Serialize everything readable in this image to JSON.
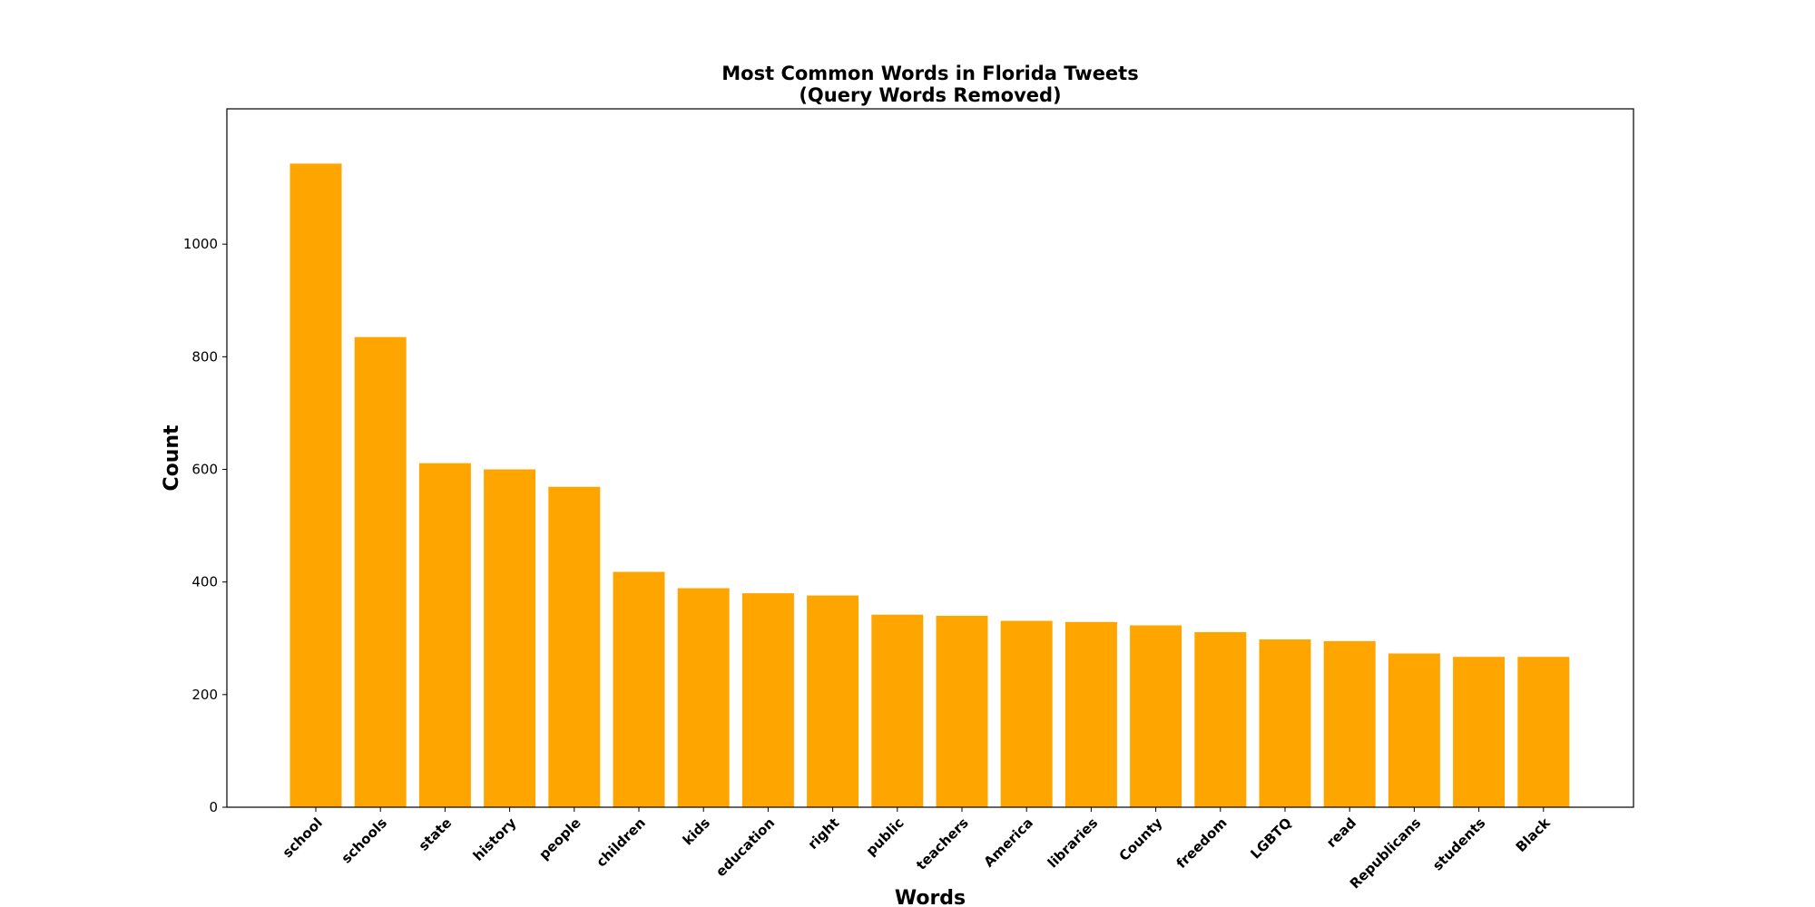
{
  "chart_data": {
    "type": "bar",
    "title": "Most Common Words in Florida Tweets",
    "subtitle": "(Query Words Removed)",
    "xlabel": "Words",
    "ylabel": "Count",
    "categories": [
      "school",
      "schools",
      "state",
      "history",
      "people",
      "children",
      "kids",
      "education",
      "right",
      "public",
      "teachers",
      "America",
      "libraries",
      "County",
      "freedom",
      "LGBTQ",
      "read",
      "Republicans",
      "students",
      "Black"
    ],
    "values": [
      1143,
      835,
      611,
      600,
      569,
      418,
      389,
      380,
      376,
      342,
      340,
      331,
      329,
      323,
      311,
      298,
      295,
      273,
      267,
      267
    ],
    "yticks": [
      0,
      200,
      400,
      600,
      800,
      1000
    ],
    "ylim": [
      0,
      1200
    ],
    "bar_color": "#ffa500",
    "grid": false,
    "legend": false
  }
}
